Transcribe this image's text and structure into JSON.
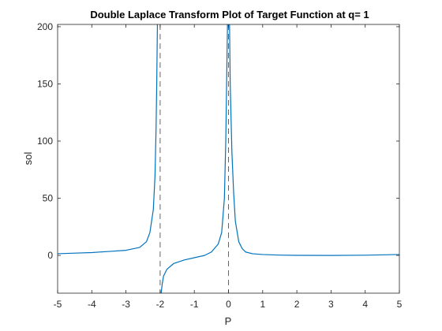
{
  "chart_data": {
    "type": "line",
    "title": "Double Laplace Transform Plot of Target Function at q= 1",
    "xlabel": "P",
    "ylabel": "sol",
    "xlim": [
      -5,
      5
    ],
    "ylim": [
      -33,
      202
    ],
    "xticks": [
      -5,
      -4,
      -3,
      -2,
      -1,
      0,
      1,
      2,
      3,
      4,
      5
    ],
    "yticks": [
      0,
      50,
      100,
      150,
      200
    ],
    "xtick_labels": [
      "-5",
      "-4",
      "-3",
      "-2",
      "-1",
      "0",
      "1",
      "2",
      "3",
      "4",
      "5"
    ],
    "ytick_labels": [
      "0",
      "50",
      "100",
      "150",
      "200"
    ],
    "grid": false,
    "box": true,
    "line_color": "#0072bd",
    "asymptote_color": "#666666",
    "asymptotes": [
      -2,
      0
    ],
    "series": [
      {
        "segments": [
          [
            [
              -5,
              1.5
            ],
            [
              -4.5,
              2.0
            ],
            [
              -4,
              2.5
            ],
            [
              -3.5,
              3.5
            ],
            [
              -3,
              4.5
            ],
            [
              -2.6,
              7
            ],
            [
              -2.4,
              12
            ],
            [
              -2.3,
              20
            ],
            [
              -2.2,
              40
            ],
            [
              -2.15,
              70
            ],
            [
              -2.12,
              110
            ],
            [
              -2.1,
              150
            ],
            [
              -2.08,
              202
            ]
          ],
          [
            [
              -1.97,
              -33
            ],
            [
              -1.94,
              -25
            ],
            [
              -1.9,
              -18
            ],
            [
              -1.8,
              -12
            ],
            [
              -1.6,
              -7
            ],
            [
              -1.3,
              -4
            ],
            [
              -1.0,
              -2
            ],
            [
              -0.7,
              0
            ],
            [
              -0.5,
              3
            ],
            [
              -0.3,
              10
            ],
            [
              -0.2,
              20
            ],
            [
              -0.12,
              50
            ],
            [
              -0.08,
              100
            ],
            [
              -0.05,
              160
            ],
            [
              -0.03,
              202
            ]
          ],
          [
            [
              0.03,
              202
            ],
            [
              0.05,
              150
            ],
            [
              0.1,
              90
            ],
            [
              0.15,
              55
            ],
            [
              0.2,
              30
            ],
            [
              0.3,
              12
            ],
            [
              0.4,
              6
            ],
            [
              0.5,
              3
            ],
            [
              0.7,
              1.5
            ],
            [
              1,
              0.8
            ],
            [
              1.5,
              0.3
            ],
            [
              2,
              0.1
            ],
            [
              3,
              0.0
            ],
            [
              4,
              0.2
            ],
            [
              5,
              0.8
            ]
          ]
        ]
      }
    ]
  }
}
